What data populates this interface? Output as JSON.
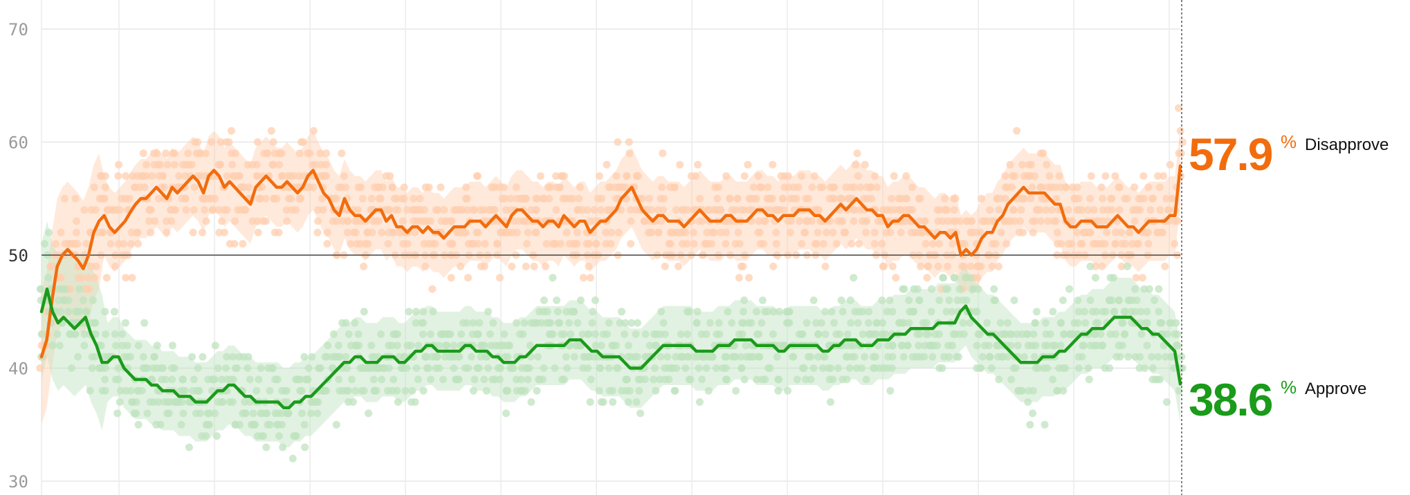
{
  "chart_data": {
    "type": "line",
    "xlabel": "",
    "ylabel": "",
    "ylim": [
      29,
      72
    ],
    "y_ticks": [
      "30",
      "40",
      "50",
      "60",
      "70"
    ],
    "grid": true,
    "series": [
      {
        "name": "Disapprove",
        "color": "#f26c0d",
        "dot_color": "#ffcfb0",
        "current_value": "57.9",
        "values": [
          41,
          42.5,
          46,
          49,
          50,
          50.5,
          50,
          49.5,
          48.8,
          50,
          52,
          53,
          53.5,
          52.5,
          52,
          52.5,
          53,
          53.8,
          54.5,
          55,
          55,
          55.5,
          56,
          55.5,
          55,
          56,
          55.5,
          56,
          56.5,
          57,
          56.5,
          55.5,
          57,
          57.5,
          57,
          56,
          56.5,
          56,
          55.5,
          55,
          54.5,
          56,
          56.5,
          57,
          56.5,
          56,
          56,
          56.5,
          56,
          55.5,
          56,
          57,
          57.5,
          56.5,
          55.5,
          55,
          54,
          53.5,
          55,
          54,
          53.5,
          53.5,
          53,
          53.5,
          54,
          54,
          53,
          53.5,
          52.5,
          52.5,
          52,
          52.5,
          52.5,
          52,
          52.5,
          52,
          52,
          51.5,
          52,
          52.5,
          52.5,
          52.5,
          53,
          53,
          53,
          52.5,
          53,
          53.5,
          53,
          52.5,
          53.5,
          54,
          54,
          53.5,
          53,
          53,
          52.5,
          53,
          53,
          52.5,
          53.5,
          53,
          52.5,
          53,
          53,
          52,
          52.5,
          53,
          53,
          53.5,
          54,
          55,
          55.5,
          56,
          55,
          54,
          53.5,
          53,
          53.5,
          53.5,
          53,
          53,
          53,
          52.5,
          53,
          53.5,
          54,
          53.5,
          53,
          53,
          53,
          53.5,
          53.5,
          53,
          53,
          53,
          53.5,
          54,
          54,
          53.5,
          53.5,
          53,
          53.5,
          53.5,
          53.5,
          54,
          54,
          54,
          53.5,
          53.5,
          53,
          53.5,
          54,
          54.5,
          54,
          54.5,
          55,
          54.5,
          54,
          54,
          53.5,
          53.5,
          52.5,
          53,
          53,
          53.5,
          53.5,
          53,
          52.5,
          52.5,
          52,
          51.5,
          52,
          52,
          51.5,
          52,
          50,
          50.5,
          50,
          50.5,
          51.5,
          52,
          52,
          53,
          53.5,
          54.5,
          55,
          55.5,
          56,
          55.5,
          55.5,
          55.5,
          55.5,
          55,
          54.5,
          54.5,
          53,
          52.5,
          52.5,
          53,
          53,
          53,
          52.5,
          52.5,
          52.5,
          53,
          53.5,
          53,
          52.5,
          52.5,
          52,
          52.5,
          53,
          53,
          53,
          53,
          53.5,
          53.5,
          57.9
        ]
      },
      {
        "name": "Approve",
        "color": "#1a9b1a",
        "dot_color": "#bfe3bf",
        "current_value": "38.6",
        "values": [
          45,
          47,
          45,
          44,
          44.5,
          44,
          43.5,
          44,
          44.5,
          43,
          42,
          40.5,
          40.5,
          41,
          41,
          40,
          39.5,
          39,
          39,
          39,
          38.5,
          38.5,
          38,
          38,
          38,
          37.5,
          37.5,
          37.5,
          37,
          37,
          37,
          37.5,
          38,
          38,
          38.5,
          38.5,
          38,
          37.5,
          37.5,
          37,
          37,
          37,
          37,
          37,
          36.5,
          36.5,
          37,
          37,
          37.5,
          37.5,
          38,
          38.5,
          39,
          39.5,
          40,
          40.5,
          40.5,
          41,
          41,
          40.5,
          40.5,
          40.5,
          41,
          41,
          41,
          40.5,
          40.5,
          41,
          41.5,
          41.5,
          42,
          42,
          41.5,
          41.5,
          41.5,
          41.5,
          41.5,
          42,
          42,
          41.5,
          41.5,
          41.5,
          41,
          41,
          40.5,
          40.5,
          40.5,
          41,
          41,
          41.5,
          42,
          42,
          42,
          42,
          42,
          42,
          42.5,
          42.5,
          42.5,
          42,
          41.5,
          41.5,
          41,
          41,
          41,
          41,
          40.5,
          40,
          40,
          40,
          40.5,
          41,
          41.5,
          42,
          42,
          42,
          42,
          42,
          42,
          41.5,
          41.5,
          41.5,
          41.5,
          42,
          42,
          42,
          42.5,
          42.5,
          42.5,
          42.5,
          42,
          42,
          42,
          42,
          41.5,
          41.5,
          42,
          42,
          42,
          42,
          42,
          42,
          41.5,
          41.5,
          42,
          42,
          42.5,
          42.5,
          42.5,
          42,
          42,
          42,
          42.5,
          42.5,
          42.5,
          43,
          43,
          43,
          43.5,
          43.5,
          43.5,
          43.5,
          43.5,
          44,
          44,
          44,
          44,
          45,
          45.5,
          44.5,
          44,
          43.5,
          43,
          43,
          42.5,
          42,
          41.5,
          41,
          40.5,
          40.5,
          40.5,
          40.5,
          41,
          41,
          41,
          41.5,
          41.5,
          42,
          42.5,
          43,
          43,
          43.5,
          43.5,
          43.5,
          44,
          44.5,
          44.5,
          44.5,
          44.5,
          44,
          43.5,
          43.5,
          43,
          43,
          42.5,
          42,
          41.5,
          38.6
        ]
      }
    ]
  },
  "labels": {
    "disapprove": {
      "value": "57.9",
      "pct": "%",
      "name": "Disapprove",
      "color": "#f26c0d"
    },
    "approve": {
      "value": "38.6",
      "pct": "%",
      "name": "Approve",
      "color": "#1a9b1a"
    }
  }
}
